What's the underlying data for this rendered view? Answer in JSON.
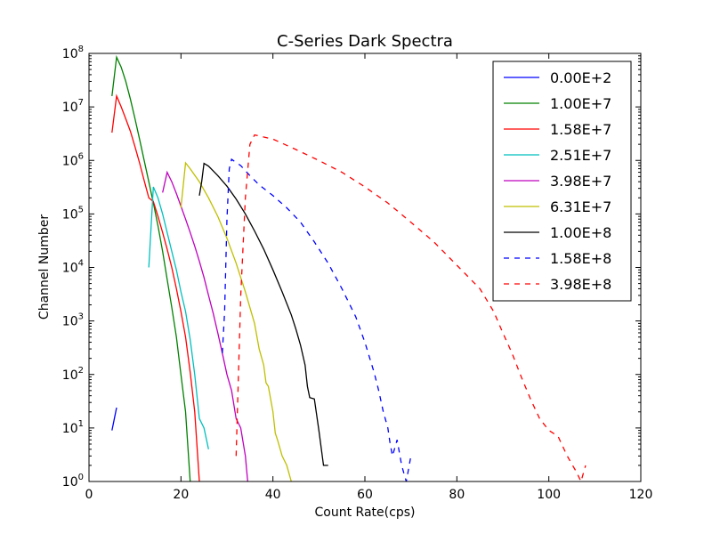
{
  "chart_data": {
    "type": "line",
    "title": "C-Series Dark Spectra",
    "xlabel": "Count Rate(cps)",
    "ylabel": "Channel Number",
    "xlim": [
      0,
      120
    ],
    "ylim": [
      1,
      100000000
    ],
    "yscale": "log",
    "x_ticks": [
      0,
      20,
      40,
      60,
      80,
      100,
      120
    ],
    "y_ticks": [
      {
        "value": 1,
        "base": "10",
        "exp": "0"
      },
      {
        "value": 10,
        "base": "10",
        "exp": "1"
      },
      {
        "value": 100,
        "base": "10",
        "exp": "2"
      },
      {
        "value": 1000,
        "base": "10",
        "exp": "3"
      },
      {
        "value": 10000,
        "base": "10",
        "exp": "4"
      },
      {
        "value": 100000,
        "base": "10",
        "exp": "5"
      },
      {
        "value": 1000000,
        "base": "10",
        "exp": "6"
      },
      {
        "value": 10000000,
        "base": "10",
        "exp": "7"
      },
      {
        "value": 100000000,
        "base": "10",
        "exp": "8"
      }
    ],
    "grid": false,
    "legend_position": "top-right",
    "series": [
      {
        "name": "0.00E+2",
        "color": "#0000ff",
        "dash": "solid",
        "points": [
          [
            5,
            9
          ],
          [
            6,
            24
          ]
        ]
      },
      {
        "name": "1.00E+7",
        "color": "#008000",
        "dash": "solid",
        "points": [
          [
            5,
            16000000
          ],
          [
            6,
            85000000
          ],
          [
            7,
            55000000
          ],
          [
            8,
            30000000
          ],
          [
            9,
            14000000
          ],
          [
            10,
            6000000
          ],
          [
            11,
            2500000
          ],
          [
            12,
            1000000
          ],
          [
            13,
            400000
          ],
          [
            14,
            160000
          ],
          [
            15,
            60000
          ],
          [
            16,
            20000
          ],
          [
            17,
            6000
          ],
          [
            18,
            1800
          ],
          [
            19,
            500
          ],
          [
            20,
            100
          ],
          [
            21,
            20
          ],
          [
            22,
            1
          ]
        ]
      },
      {
        "name": "1.58E+7",
        "color": "#ff0000",
        "dash": "solid",
        "points": [
          [
            5,
            3300000
          ],
          [
            6,
            16000000
          ],
          [
            7,
            10000000
          ],
          [
            8,
            6000000
          ],
          [
            9,
            3500000
          ],
          [
            10,
            1800000
          ],
          [
            11,
            900000
          ],
          [
            12,
            420000
          ],
          [
            13,
            200000
          ],
          [
            14,
            170000
          ],
          [
            15,
            90000
          ],
          [
            16,
            45000
          ],
          [
            17,
            22000
          ],
          [
            18,
            10000
          ],
          [
            19,
            4000
          ],
          [
            20,
            1500
          ],
          [
            21,
            500
          ],
          [
            22,
            110
          ],
          [
            23,
            20
          ],
          [
            24,
            1
          ]
        ]
      },
      {
        "name": "2.51E+7",
        "color": "#00bfbf",
        "dash": "solid",
        "points": [
          [
            13,
            10000
          ],
          [
            14,
            320000
          ],
          [
            15,
            200000
          ],
          [
            16,
            100000
          ],
          [
            17,
            45000
          ],
          [
            18,
            20000
          ],
          [
            19,
            9000
          ],
          [
            20,
            3500
          ],
          [
            21,
            1500
          ],
          [
            22,
            450
          ],
          [
            23,
            100
          ],
          [
            24,
            15
          ],
          [
            25,
            10
          ],
          [
            26,
            4
          ]
        ]
      },
      {
        "name": "3.98E+7",
        "color": "#bf00bf",
        "dash": "solid",
        "points": [
          [
            16,
            250000
          ],
          [
            17,
            600000
          ],
          [
            18,
            400000
          ],
          [
            19,
            240000
          ],
          [
            20,
            140000
          ],
          [
            21,
            80000
          ],
          [
            22,
            45000
          ],
          [
            23,
            25000
          ],
          [
            24,
            13000
          ],
          [
            25,
            6500
          ],
          [
            26,
            3000
          ],
          [
            27,
            1400
          ],
          [
            28,
            600
          ],
          [
            29,
            250
          ],
          [
            30,
            100
          ],
          [
            31,
            50
          ],
          [
            32,
            15
          ],
          [
            33,
            10
          ],
          [
            34,
            3
          ],
          [
            34.5,
            1
          ]
        ]
      },
      {
        "name": "6.31E+7",
        "color": "#bfbf00",
        "dash": "solid",
        "points": [
          [
            20,
            130000
          ],
          [
            21,
            900000
          ],
          [
            22,
            700000
          ],
          [
            24,
            400000
          ],
          [
            26,
            200000
          ],
          [
            28,
            90000
          ],
          [
            30,
            35000
          ],
          [
            32,
            12000
          ],
          [
            34,
            3500
          ],
          [
            36,
            900
          ],
          [
            37,
            300
          ],
          [
            38,
            150
          ],
          [
            38.5,
            70
          ],
          [
            39,
            60
          ],
          [
            40,
            20
          ],
          [
            40.5,
            8
          ],
          [
            41,
            6
          ],
          [
            42,
            3
          ],
          [
            43,
            2
          ],
          [
            44,
            1
          ]
        ]
      },
      {
        "name": "1.00E+8",
        "color": "#000000",
        "dash": "solid",
        "points": [
          [
            24,
            220000
          ],
          [
            24.5,
            400000
          ],
          [
            25,
            880000
          ],
          [
            26,
            780000
          ],
          [
            28,
            520000
          ],
          [
            30,
            330000
          ],
          [
            32,
            190000
          ],
          [
            34,
            100000
          ],
          [
            36,
            48000
          ],
          [
            38,
            22000
          ],
          [
            40,
            9000
          ],
          [
            42,
            3500
          ],
          [
            44,
            1300
          ],
          [
            45,
            700
          ],
          [
            46,
            350
          ],
          [
            47,
            150
          ],
          [
            47.5,
            60
          ],
          [
            48,
            37
          ],
          [
            49,
            35
          ],
          [
            50,
            9
          ],
          [
            51,
            2
          ],
          [
            52,
            2
          ]
        ]
      },
      {
        "name": "1.58E+8",
        "color": "#0000ff",
        "dash": "dashed",
        "points": [
          [
            29,
            250
          ],
          [
            29.5,
            1500
          ],
          [
            30,
            80000
          ],
          [
            30.5,
            700000
          ],
          [
            31,
            1050000
          ],
          [
            33,
            800000
          ],
          [
            35,
            520000
          ],
          [
            37,
            350000
          ],
          [
            40,
            220000
          ],
          [
            43,
            130000
          ],
          [
            46,
            70000
          ],
          [
            49,
            30000
          ],
          [
            52,
            12000
          ],
          [
            55,
            4000
          ],
          [
            58,
            1200
          ],
          [
            60,
            400
          ],
          [
            62,
            110
          ],
          [
            63,
            50
          ],
          [
            64,
            20
          ],
          [
            65,
            10
          ],
          [
            65.5,
            5
          ],
          [
            66,
            3
          ],
          [
            67,
            6
          ],
          [
            68,
            2
          ],
          [
            69,
            1
          ],
          [
            70,
            3
          ]
        ]
      },
      {
        "name": "3.98E+8",
        "color": "#ff0000",
        "dash": "dashed",
        "points": [
          [
            32,
            3
          ],
          [
            33,
            3000
          ],
          [
            34,
            200000
          ],
          [
            35,
            2000000
          ],
          [
            36,
            3000000
          ],
          [
            40,
            2500000
          ],
          [
            45,
            1600000
          ],
          [
            50,
            1000000
          ],
          [
            55,
            600000
          ],
          [
            60,
            320000
          ],
          [
            65,
            160000
          ],
          [
            70,
            70000
          ],
          [
            75,
            30000
          ],
          [
            80,
            11000
          ],
          [
            85,
            4000
          ],
          [
            88,
            1500
          ],
          [
            90,
            600
          ],
          [
            92,
            250
          ],
          [
            94,
            90
          ],
          [
            96,
            35
          ],
          [
            98,
            15
          ],
          [
            100,
            9
          ],
          [
            102,
            7
          ],
          [
            104,
            3
          ],
          [
            106,
            1.5
          ],
          [
            107,
            1
          ],
          [
            108,
            2
          ]
        ]
      }
    ]
  }
}
